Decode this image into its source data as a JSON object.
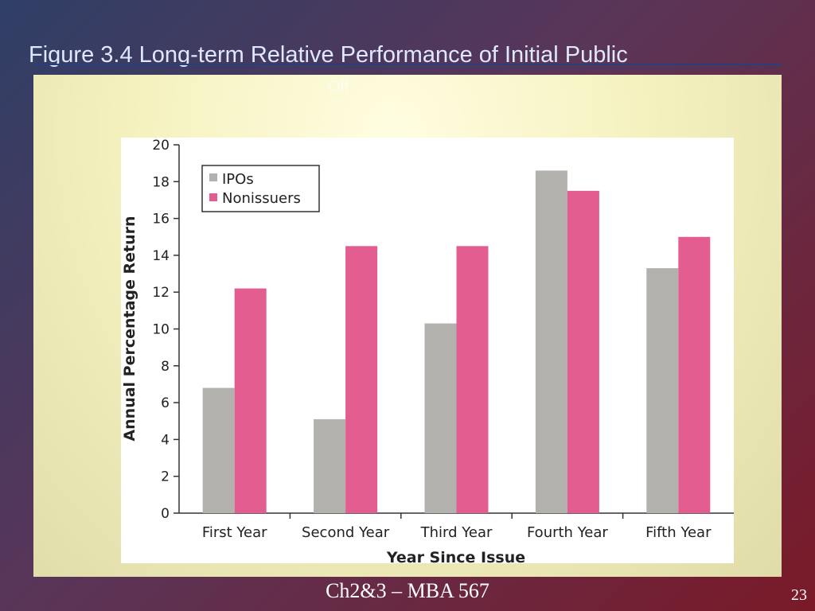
{
  "slide": {
    "title": "Figure 3.4 Long-term Relative Performance of Initial Public",
    "title_overflow": "Off",
    "footer": "Ch2&3 – MBA 567",
    "page": "23"
  },
  "colors": {
    "ipos": "#b2b1ad",
    "nonissuers": "#e35d91",
    "axis": "#333333"
  },
  "chart_data": {
    "type": "bar",
    "categories": [
      "First Year",
      "Second Year",
      "Third Year",
      "Fourth Year",
      "Fifth Year"
    ],
    "series": [
      {
        "name": "IPOs",
        "values": [
          6.8,
          5.1,
          10.3,
          18.6,
          13.3
        ]
      },
      {
        "name": "Nonissuers",
        "values": [
          12.2,
          14.5,
          14.5,
          17.5,
          15.0
        ]
      }
    ],
    "xlabel": "Year Since Issue",
    "ylabel": "Annual Percentage Return",
    "ylim": [
      0,
      20
    ],
    "yticks": [
      0,
      2,
      4,
      6,
      8,
      10,
      12,
      14,
      16,
      18,
      20
    ],
    "legend_position": "top-left",
    "grid": false
  }
}
